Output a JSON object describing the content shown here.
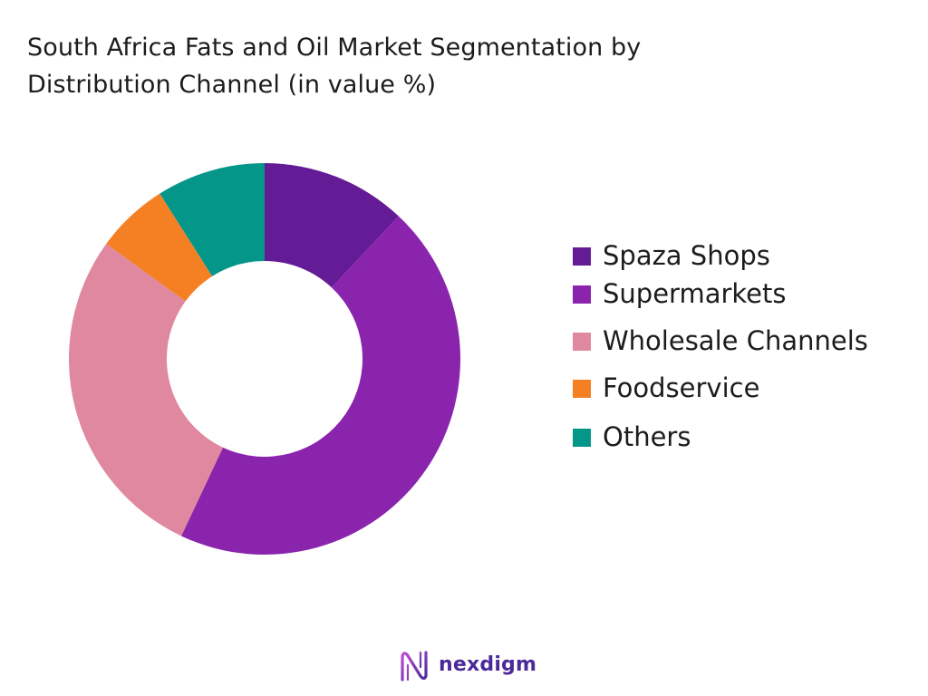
{
  "chart_data": {
    "type": "pie",
    "title_line1": "South Africa Fats and Oil Market Segmentation by",
    "title_line2": "Distribution Channel (in value %)",
    "donut": true,
    "legend_position": "right",
    "categories": [
      "Spaza Shops",
      "Supermarkets",
      "Wholesale Channels",
      "Foodservice",
      "Others"
    ],
    "values": [
      12,
      45,
      28,
      6,
      9
    ],
    "colors": [
      "#641b96",
      "#8a24ad",
      "#df889f",
      "#f58024",
      "#05968a"
    ]
  },
  "brand": {
    "name": "nexdigm",
    "color": "#4b2a9a",
    "logo_icon": "nexdigm-logo-icon"
  }
}
